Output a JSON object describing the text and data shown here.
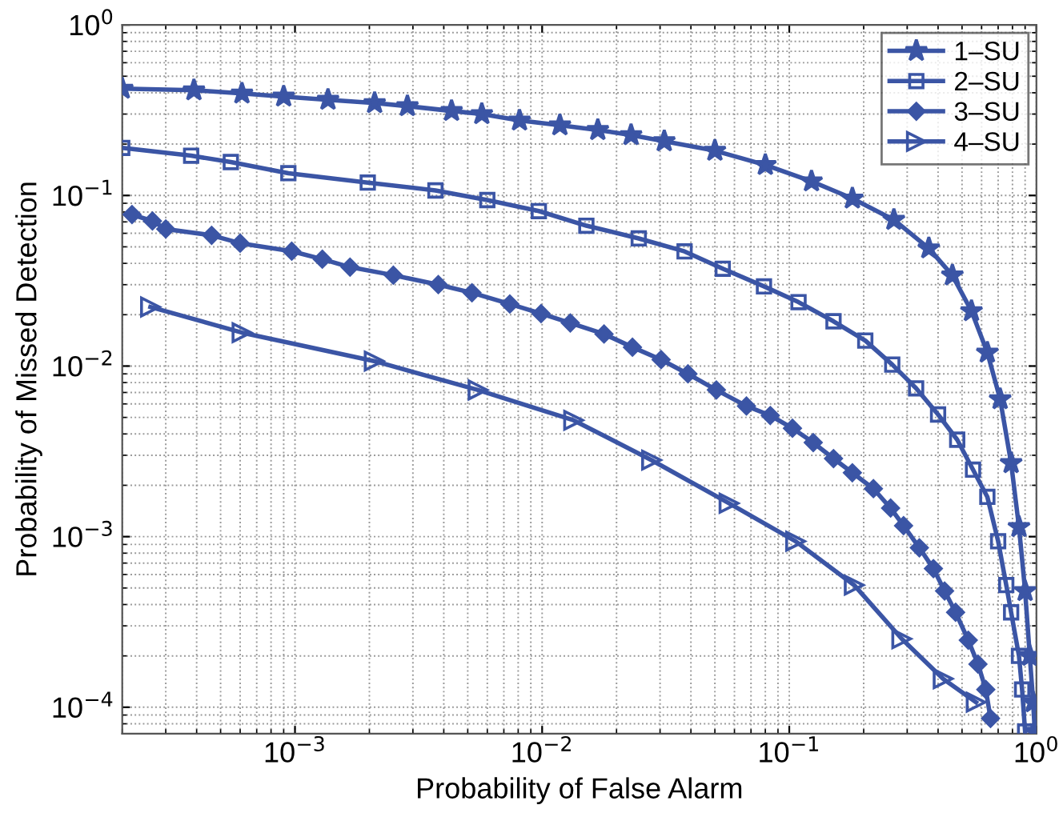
{
  "chart_data": {
    "type": "line",
    "xlabel": "Probability of False Alarm",
    "ylabel": "Probability of Missed Detection",
    "log": "xy",
    "grid": true,
    "legend": "top right",
    "line_style": "solid",
    "xlim": [
      0.0002,
      1
    ],
    "ylim": [
      7e-05,
      1
    ],
    "xticks": [
      {
        "value": 0.001,
        "label": "10$^{−3}$"
      },
      {
        "value": 0.01,
        "label": "10$^{−2}$"
      },
      {
        "value": 0.1,
        "label": "10$^{−1}$"
      },
      {
        "value": 1,
        "label": "10$^{0}$"
      }
    ],
    "yticks": [
      {
        "value": 0.0001,
        "label": "10$^{−4}$"
      },
      {
        "value": 0.001,
        "label": "10$^{−3}$"
      },
      {
        "value": 0.01,
        "label": "10$^{−2}$"
      },
      {
        "value": 0.1,
        "label": "10$^{−1}$"
      },
      {
        "value": 1,
        "label": "10$^{0}$"
      }
    ],
    "series": [
      {
        "name": "1–SU",
        "color": "#3b55a5",
        "marker": "star",
        "x": [
          0.0002,
          0.00039,
          0.00061,
          0.0009,
          0.00136,
          0.0021,
          0.00285,
          0.0043,
          0.0057,
          0.0081,
          0.0118,
          0.0168,
          0.0229,
          0.0312,
          0.05,
          0.08,
          0.123,
          0.18,
          0.265,
          0.367,
          0.457,
          0.546,
          0.633,
          0.713,
          0.79,
          0.85,
          0.9,
          0.94,
          0.97,
          0.985
        ],
        "values": [
          0.423,
          0.414,
          0.396,
          0.38,
          0.364,
          0.348,
          0.334,
          0.313,
          0.3,
          0.275,
          0.258,
          0.242,
          0.226,
          0.208,
          0.183,
          0.151,
          0.121,
          0.096,
          0.072,
          0.049,
          0.034,
          0.021,
          0.012,
          0.0064,
          0.0027,
          0.00114,
          0.00048,
          0.0002,
          0.000107,
          7.2e-05
        ]
      },
      {
        "name": "2–SU",
        "color": "#3b55a5",
        "marker": "square",
        "x": [
          0.0002,
          0.00038,
          0.00055,
          0.00094,
          0.00197,
          0.0037,
          0.006,
          0.0097,
          0.0151,
          0.0246,
          0.0377,
          0.0538,
          0.079,
          0.109,
          0.151,
          0.203,
          0.261,
          0.326,
          0.4,
          0.478,
          0.554,
          0.633,
          0.7,
          0.755,
          0.79,
          0.85,
          0.875,
          0.9
        ],
        "values": [
          0.19,
          0.171,
          0.157,
          0.135,
          0.119,
          0.107,
          0.094,
          0.081,
          0.0665,
          0.056,
          0.047,
          0.0372,
          0.0293,
          0.0237,
          0.0183,
          0.0141,
          0.0102,
          0.0074,
          0.0052,
          0.0037,
          0.00247,
          0.00171,
          0.00094,
          0.00052,
          0.00036,
          0.0002,
          0.000127,
          7.2e-05
        ]
      },
      {
        "name": "3–SU",
        "color": "#3b55a5",
        "marker": "diamond",
        "x": [
          0.000219,
          0.000265,
          0.0003,
          0.00046,
          0.0006,
          0.00097,
          0.00129,
          0.00167,
          0.0025,
          0.0038,
          0.0052,
          0.0074,
          0.0099,
          0.013,
          0.0178,
          0.0232,
          0.0303,
          0.0389,
          0.0507,
          0.0671,
          0.0838,
          0.103,
          0.125,
          0.151,
          0.18,
          0.219,
          0.257,
          0.29,
          0.336,
          0.383,
          0.425,
          0.471,
          0.53,
          0.58,
          0.624,
          0.652
        ],
        "values": [
          0.0773,
          0.0708,
          0.0636,
          0.0584,
          0.0525,
          0.0471,
          0.0423,
          0.038,
          0.0341,
          0.03,
          0.0269,
          0.0231,
          0.0203,
          0.0179,
          0.0154,
          0.0129,
          0.0109,
          0.009,
          0.00724,
          0.00583,
          0.00513,
          0.00432,
          0.00356,
          0.00287,
          0.00237,
          0.00191,
          0.00147,
          0.00116,
          0.00086,
          0.00065,
          0.00048,
          0.00036,
          0.000247,
          0.000179,
          0.000127,
          8.6e-05
        ]
      },
      {
        "name": "4–SU",
        "color": "#3b55a5",
        "marker": "triangle",
        "x": [
          0.00026,
          0.00061,
          0.00209,
          0.0055,
          0.0134,
          0.0277,
          0.057,
          0.106,
          0.183,
          0.285,
          0.419,
          0.57
        ],
        "values": [
          0.0222,
          0.0157,
          0.0107,
          0.00724,
          0.00481,
          0.00281,
          0.00157,
          0.00094,
          0.00052,
          0.000252,
          0.000147,
          0.000107
        ]
      }
    ]
  }
}
